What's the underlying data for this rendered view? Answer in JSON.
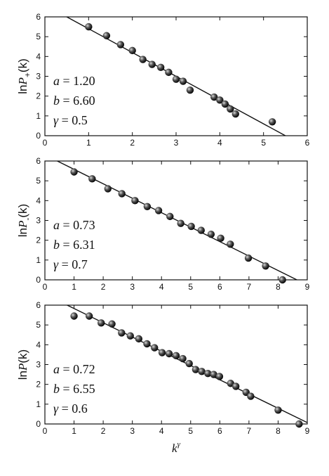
{
  "chart_data": [
    {
      "type": "scatter",
      "ylabel": {
        "prefix": "ln",
        "var": "P",
        "sub": "+",
        "arg": "(k)"
      },
      "xlim": [
        0,
        6
      ],
      "ylim": [
        0,
        6
      ],
      "xticks": [
        "0",
        "1",
        "2",
        "3",
        "4",
        "5",
        "6"
      ],
      "yticks": [
        "0",
        "1",
        "2",
        "3",
        "4",
        "5",
        "6"
      ],
      "params": [
        {
          "sym": "a",
          "text": " = 1.20"
        },
        {
          "sym": "b",
          "text": " = 6.60"
        },
        {
          "sym": "γ",
          "text": " = 0.5"
        }
      ],
      "fit": {
        "intercept": 6.6,
        "slope": -1.2
      },
      "points": [
        [
          1.0,
          5.5
        ],
        [
          1.41,
          5.05
        ],
        [
          1.73,
          4.6
        ],
        [
          2.0,
          4.3
        ],
        [
          2.24,
          3.85
        ],
        [
          2.45,
          3.6
        ],
        [
          2.65,
          3.45
        ],
        [
          2.83,
          3.2
        ],
        [
          3.0,
          2.85
        ],
        [
          3.16,
          2.75
        ],
        [
          3.32,
          2.3
        ],
        [
          3.87,
          1.95
        ],
        [
          4.0,
          1.8
        ],
        [
          4.12,
          1.6
        ],
        [
          4.24,
          1.35
        ],
        [
          4.36,
          1.1
        ],
        [
          5.2,
          0.7
        ]
      ]
    },
    {
      "type": "scatter",
      "ylabel": {
        "prefix": "ln",
        "var": "P",
        "sub": "-",
        "arg": "(k)"
      },
      "xlim": [
        0,
        9
      ],
      "ylim": [
        0,
        6
      ],
      "xticks": [
        "0",
        "1",
        "2",
        "3",
        "4",
        "5",
        "6",
        "7",
        "8",
        "9"
      ],
      "yticks": [
        "0",
        "1",
        "2",
        "3",
        "4",
        "5",
        "6"
      ],
      "params": [
        {
          "sym": "a",
          "text": " = 0.73"
        },
        {
          "sym": "b",
          "text": " = 6.31"
        },
        {
          "sym": "γ",
          "text": " = 0.7"
        }
      ],
      "fit": {
        "intercept": 6.31,
        "slope": -0.73
      },
      "points": [
        [
          1.0,
          5.45
        ],
        [
          1.62,
          5.1
        ],
        [
          2.16,
          4.6
        ],
        [
          2.64,
          4.35
        ],
        [
          3.09,
          4.0
        ],
        [
          3.51,
          3.7
        ],
        [
          3.9,
          3.5
        ],
        [
          4.29,
          3.2
        ],
        [
          4.66,
          2.85
        ],
        [
          5.02,
          2.7
        ],
        [
          5.36,
          2.5
        ],
        [
          5.7,
          2.3
        ],
        [
          6.03,
          2.1
        ],
        [
          6.36,
          1.8
        ],
        [
          6.98,
          1.1
        ],
        [
          7.57,
          0.7
        ],
        [
          8.15,
          0.0
        ]
      ]
    },
    {
      "type": "scatter",
      "xlabel": {
        "var": "k",
        "sup": "γ"
      },
      "ylabel": {
        "prefix": "ln",
        "var": "P",
        "sub": "",
        "arg": "(k)"
      },
      "xlim": [
        0,
        9
      ],
      "ylim": [
        0,
        6
      ],
      "xticks": [
        "0",
        "1",
        "2",
        "3",
        "4",
        "5",
        "6",
        "7",
        "8",
        "9"
      ],
      "yticks": [
        "0",
        "1",
        "2",
        "3",
        "4",
        "5",
        "6"
      ],
      "params": [
        {
          "sym": "a",
          "text": " = 0.72"
        },
        {
          "sym": "b",
          "text": " = 6.55"
        },
        {
          "sym": "γ",
          "text": " = 0.6"
        }
      ],
      "fit": {
        "intercept": 6.55,
        "slope": -0.72
      },
      "points": [
        [
          1.0,
          5.45
        ],
        [
          1.52,
          5.45
        ],
        [
          1.93,
          5.1
        ],
        [
          2.3,
          5.05
        ],
        [
          2.63,
          4.6
        ],
        [
          2.93,
          4.45
        ],
        [
          3.22,
          4.3
        ],
        [
          3.5,
          4.05
        ],
        [
          3.76,
          3.85
        ],
        [
          4.02,
          3.6
        ],
        [
          4.26,
          3.55
        ],
        [
          4.5,
          3.45
        ],
        [
          4.73,
          3.3
        ],
        [
          4.95,
          3.05
        ],
        [
          5.17,
          2.75
        ],
        [
          5.38,
          2.65
        ],
        [
          5.59,
          2.55
        ],
        [
          5.79,
          2.5
        ],
        [
          5.99,
          2.4
        ],
        [
          6.37,
          2.05
        ],
        [
          6.55,
          1.9
        ],
        [
          6.9,
          1.6
        ],
        [
          7.06,
          1.4
        ],
        [
          8.0,
          0.7
        ],
        [
          8.72,
          0.0
        ]
      ]
    }
  ]
}
